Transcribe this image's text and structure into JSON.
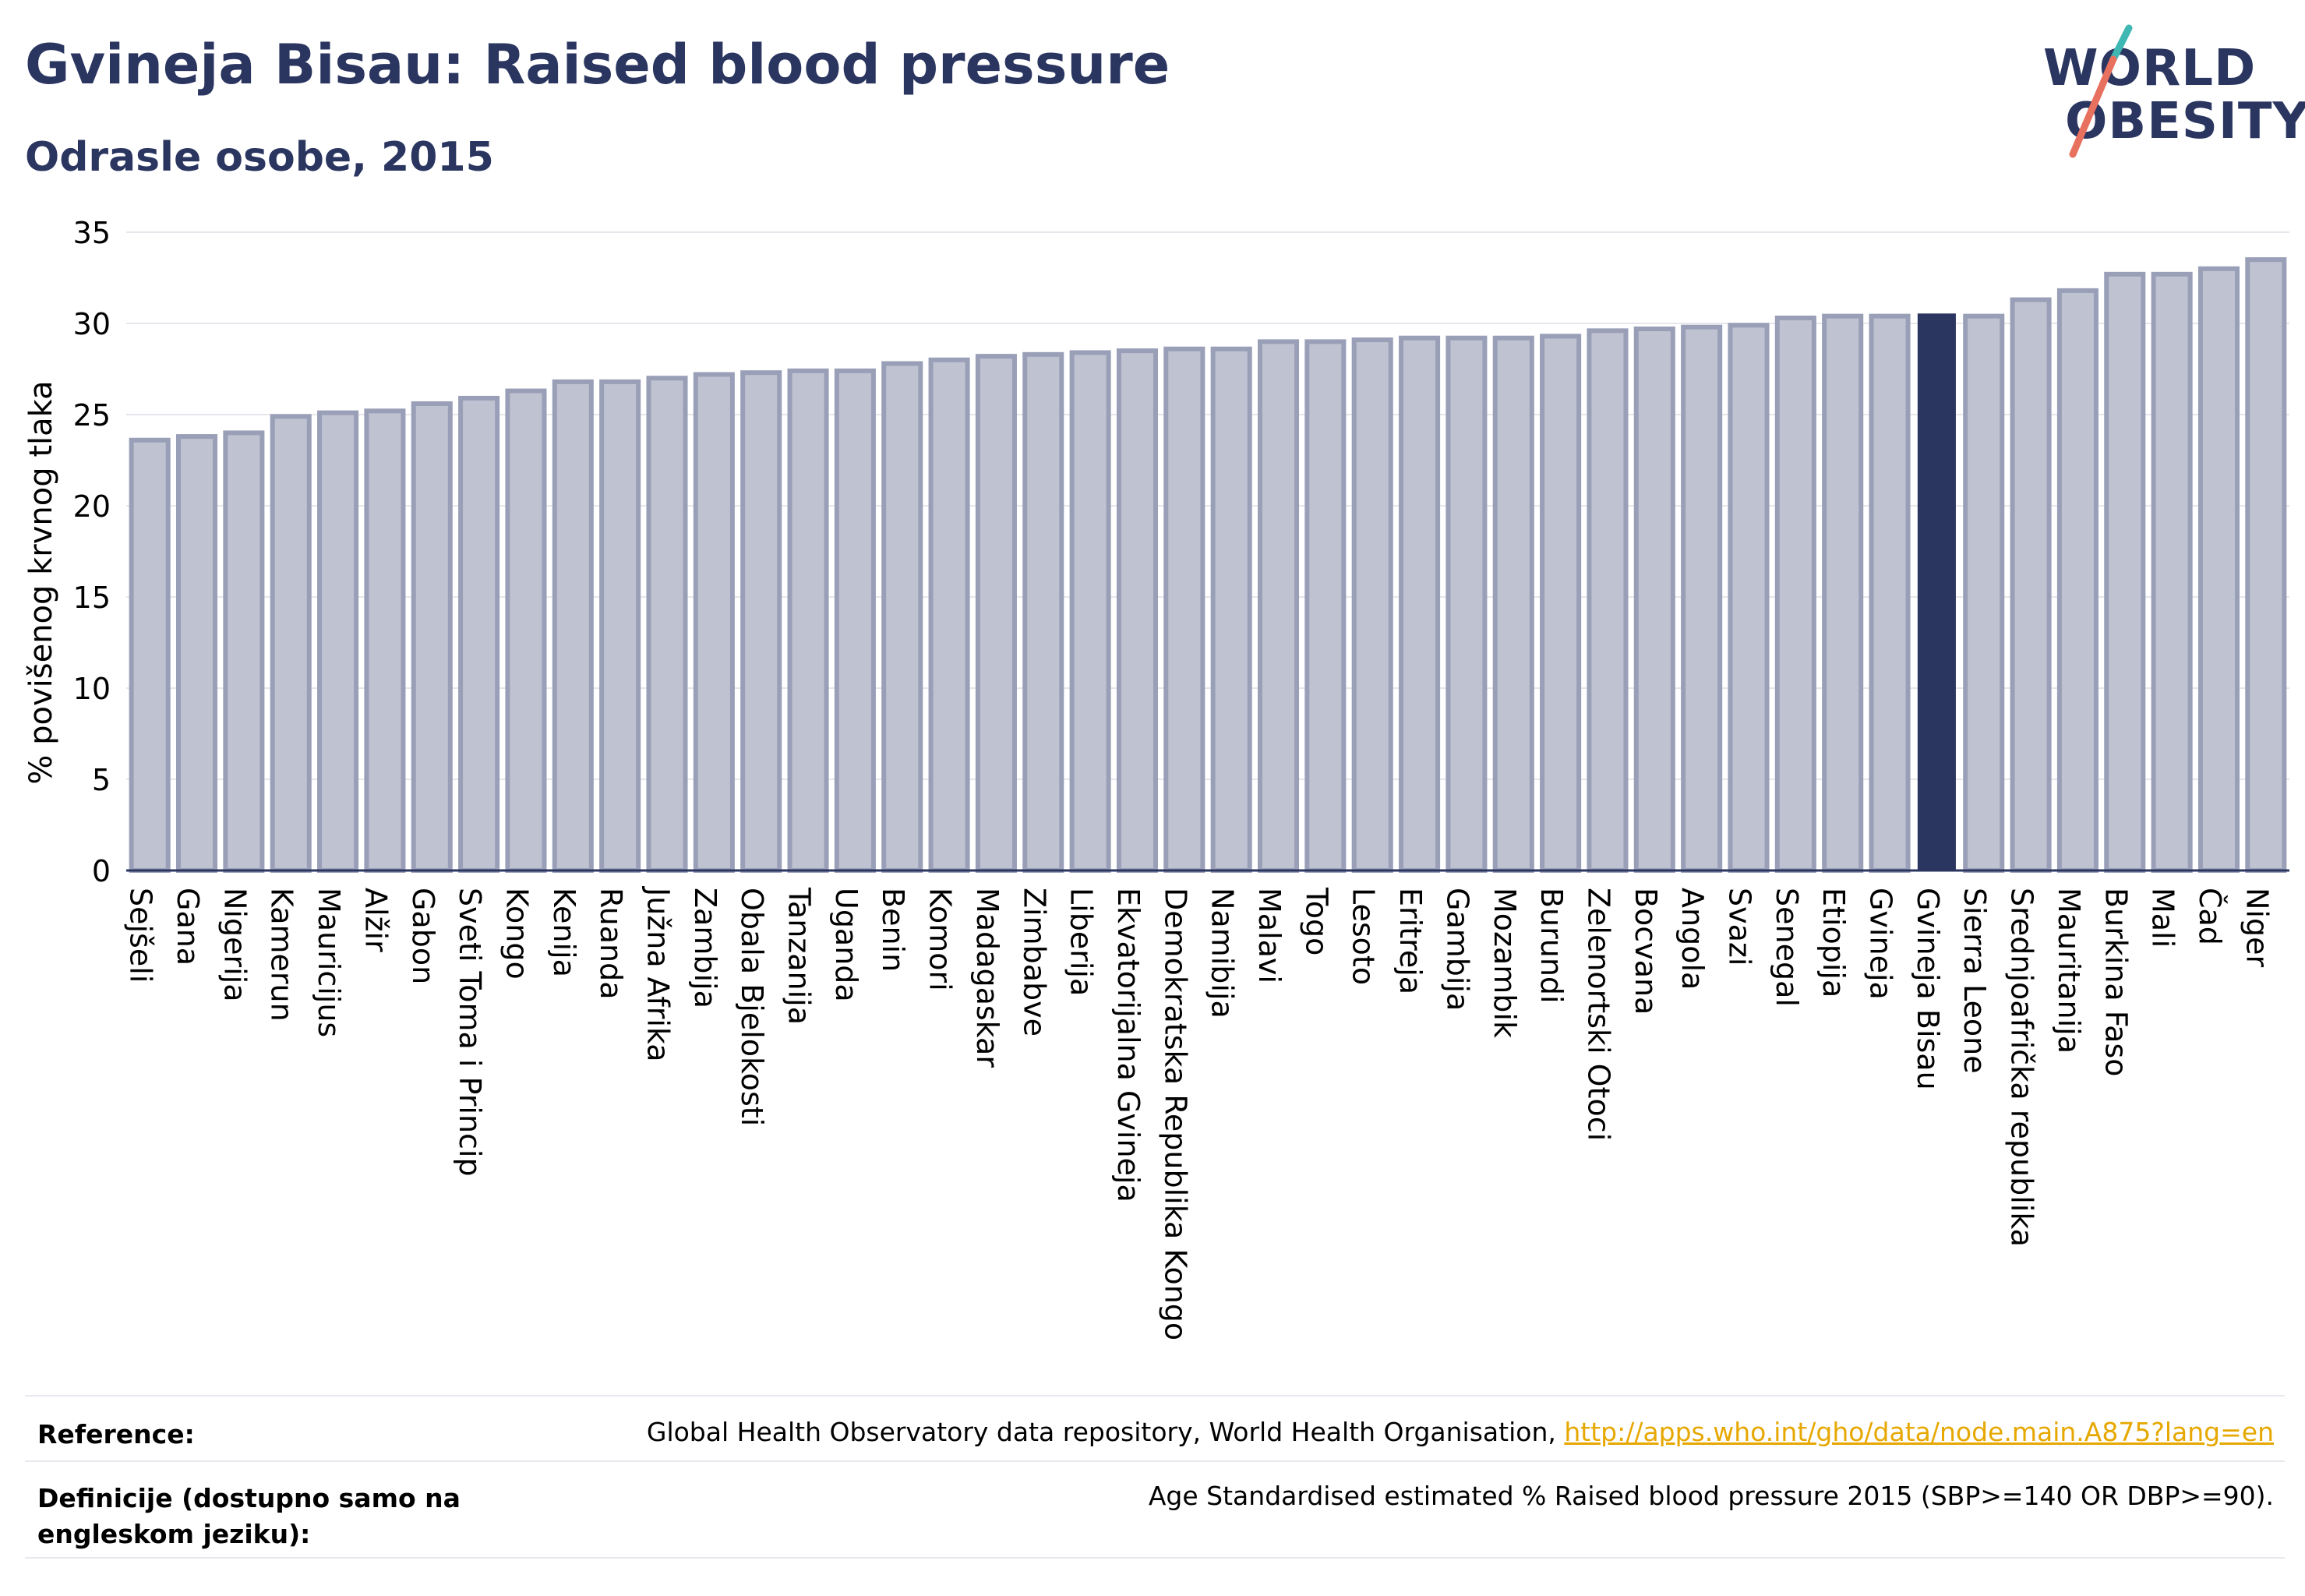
{
  "header": {
    "title": "Gvineja Bisau: Raised blood pressure",
    "subtitle": "Odrasle osobe, 2015"
  },
  "logo": {
    "line1": "WORLD",
    "line2": "OBESITY",
    "accent_teal": "#3fb8b4",
    "accent_coral": "#e8705f"
  },
  "colors": {
    "bar_fill": "#bfc2d0",
    "bar_stroke": "#9a9fb8",
    "highlight_fill": "#2a3560",
    "title": "#2a3560"
  },
  "chart_data": {
    "type": "bar",
    "title": "Gvineja Bisau: Raised blood pressure",
    "subtitle": "Odrasle osobe, 2015",
    "ylabel": "% povišenog krvnog tlaka",
    "xlabel": "",
    "ylim": [
      0,
      35
    ],
    "yticks": [
      0,
      5,
      10,
      15,
      20,
      25,
      30,
      35
    ],
    "grid": true,
    "highlight": "Gvineja Bisau",
    "categories": [
      "Sejšeli",
      "Gana",
      "Nigerija",
      "Kamerun",
      "Mauricijus",
      "Alžir",
      "Gabon",
      "Sveti Toma i Princip",
      "Kongo",
      "Kenija",
      "Ruanda",
      "Južna Afrika",
      "Zambija",
      "Obala Bjelokosti",
      "Tanzanija",
      "Uganda",
      "Benin",
      "Komori",
      "Madagaskar",
      "Zimbabve",
      "Liberija",
      "Ekvatorijalna Gvineja",
      "Demokratska Republika Kongo",
      "Namibija",
      "Malavi",
      "Togo",
      "Lesoto",
      "Eritreja",
      "Gambija",
      "Mozambik",
      "Burundi",
      "Zelenortski Otoci",
      "Bocvana",
      "Angola",
      "Svazi",
      "Senegal",
      "Etiopija",
      "Gvineja",
      "Gvineja Bisau",
      "Sierra Leone",
      "Srednjoafrička republika",
      "Mauritanija",
      "Burkina Faso",
      "Mali",
      "Čad",
      "Niger"
    ],
    "values": [
      23.6,
      23.8,
      24.0,
      24.9,
      25.1,
      25.2,
      25.6,
      25.9,
      26.3,
      26.8,
      26.8,
      27.0,
      27.2,
      27.3,
      27.4,
      27.4,
      27.8,
      28.0,
      28.2,
      28.3,
      28.4,
      28.5,
      28.6,
      28.6,
      29.0,
      29.0,
      29.1,
      29.2,
      29.2,
      29.2,
      29.3,
      29.6,
      29.7,
      29.8,
      29.9,
      30.3,
      30.4,
      30.4,
      30.5,
      30.4,
      31.3,
      31.8,
      32.7,
      32.7,
      33.0,
      33.5
    ]
  },
  "footer": {
    "reference_label": "Reference:",
    "reference_text": "Global Health Observatory data repository, World Health Organisation, ",
    "reference_link": "http://apps.who.int/gho/data/node.main.A875?lang=en",
    "definition_label": "Definicije (dostupno samo na engleskom jeziku):",
    "definition_text": "Age Standardised estimated % Raised blood pressure 2015 (SBP>=140 OR DBP>=90)."
  }
}
